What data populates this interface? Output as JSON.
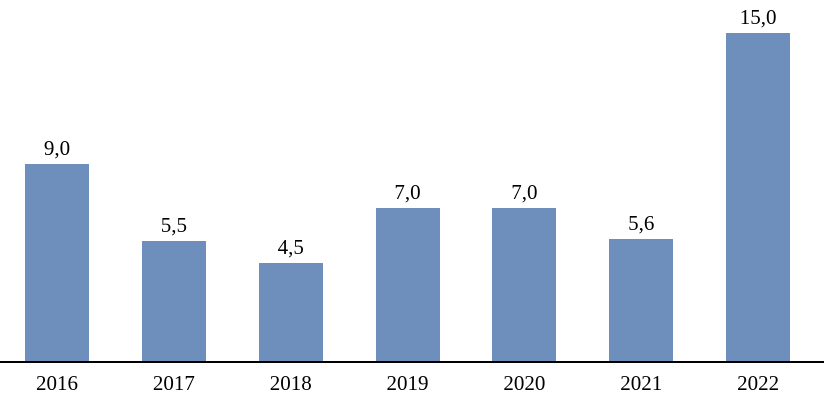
{
  "chart_data": {
    "type": "bar",
    "title": "",
    "xlabel": "",
    "ylabel": "",
    "categories": [
      "2016",
      "2017",
      "2018",
      "2019",
      "2020",
      "2021",
      "2022"
    ],
    "values": [
      9.0,
      5.5,
      4.5,
      7.0,
      7.0,
      5.6,
      15.0
    ],
    "value_labels": [
      "9,0",
      "5,5",
      "4,5",
      "7,0",
      "7,0",
      "5,6",
      "15,0"
    ],
    "decimal_separator": ",",
    "ylim": [
      0,
      16.5
    ],
    "grid": false,
    "legend": false,
    "y_axis_visible": false,
    "bar_color": "#6e8ebc",
    "axis_line_color": "#000000",
    "text_color": "#000000",
    "background_color": "#ffffff"
  }
}
